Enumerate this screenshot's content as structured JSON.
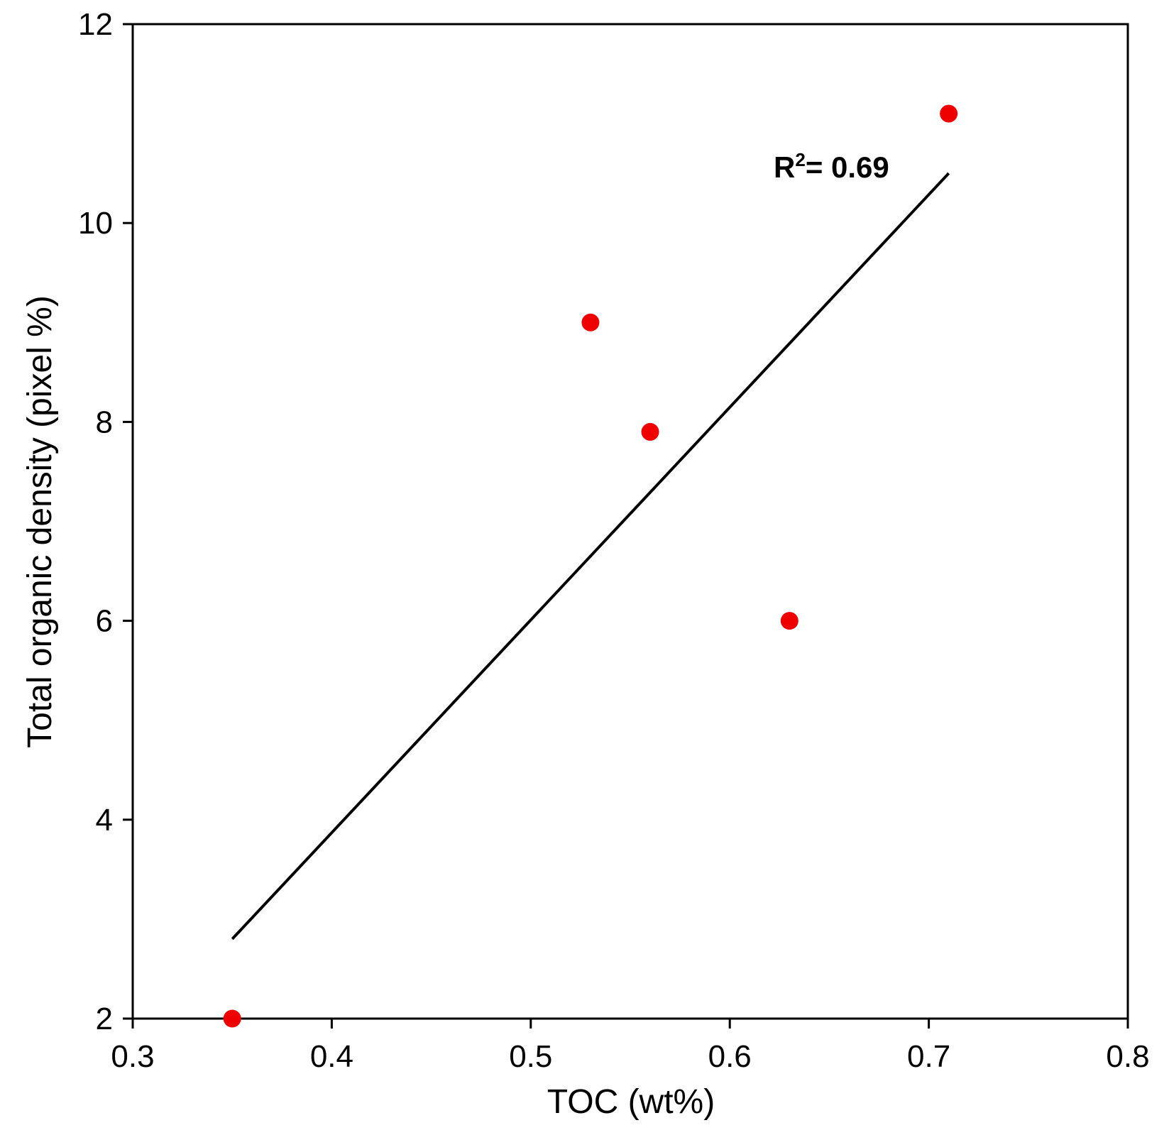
{
  "chart_data": {
    "type": "scatter",
    "title": "",
    "xlabel": "TOC (wt%)",
    "ylabel": "Total organic density (pixel %)",
    "xlim": [
      0.3,
      0.8
    ],
    "ylim": [
      2,
      12
    ],
    "xticks": [
      0.3,
      0.4,
      0.5,
      0.6,
      0.7,
      0.8
    ],
    "yticks": [
      2,
      4,
      6,
      8,
      10,
      12
    ],
    "xtick_labels": [
      "0.3",
      "0.4",
      "0.5",
      "0.6",
      "0.7",
      "0.8"
    ],
    "ytick_labels": [
      "2",
      "4",
      "6",
      "8",
      "10",
      "12"
    ],
    "grid": false,
    "series": [
      {
        "color": "#ee0000",
        "points": [
          {
            "x": 0.35,
            "y": 2.0
          },
          {
            "x": 0.53,
            "y": 9.0
          },
          {
            "x": 0.56,
            "y": 7.9
          },
          {
            "x": 0.63,
            "y": 6.0
          },
          {
            "x": 0.71,
            "y": 11.1
          }
        ]
      }
    ],
    "trendline": {
      "color": "#000000",
      "start": {
        "x": 0.35,
        "y": 2.8
      },
      "end": {
        "x": 0.71,
        "y": 10.5
      }
    },
    "annotations": [
      {
        "text_main": "R",
        "text_sup": "2",
        "text_rest": "= 0.69"
      }
    ]
  }
}
